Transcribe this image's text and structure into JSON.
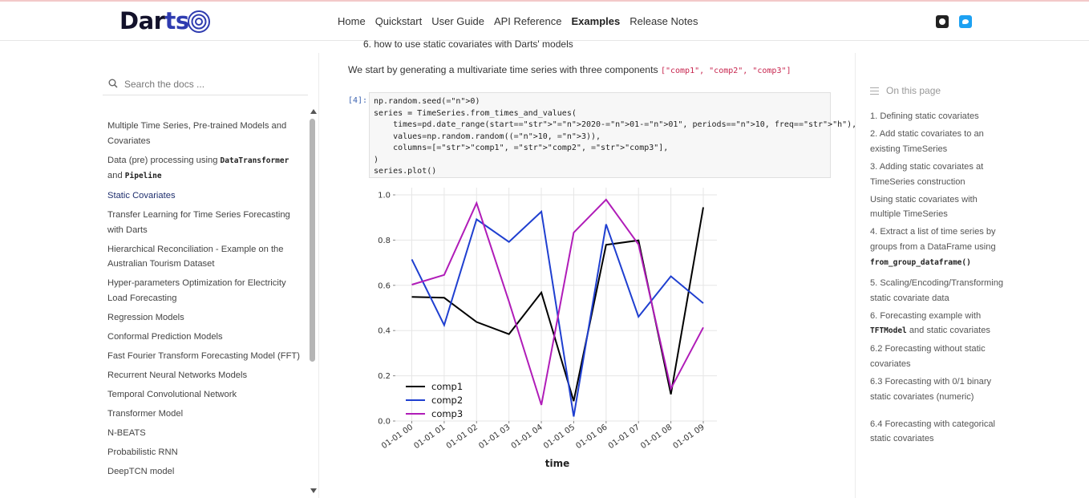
{
  "header": {
    "logo_left": "Dar",
    "logo_right": "ts",
    "nav": [
      "Home",
      "Quickstart",
      "User Guide",
      "API Reference",
      "Examples",
      "Release Notes"
    ],
    "active_nav": "Examples",
    "social": [
      "github-icon",
      "twitter-icon"
    ]
  },
  "sidebar": {
    "search_placeholder": "Search the docs ...",
    "items": [
      {
        "label": "Multiple Time Series, Pre-trained Models and Covariates"
      },
      {
        "pre": "Data (pre) processing using ",
        "code1": "DataTransformer",
        "mid": " and ",
        "code2": "Pipeline"
      },
      {
        "label": "Static Covariates",
        "active": true
      },
      {
        "label": "Transfer Learning for Time Series Forecasting with Darts"
      },
      {
        "label": "Hierarchical Reconciliation - Example on the Australian Tourism Dataset"
      },
      {
        "label": "Hyper-parameters Optimization for Electricity Load Forecasting"
      },
      {
        "label": "Regression Models"
      },
      {
        "label": "Conformal Prediction Models"
      },
      {
        "label": "Fast Fourier Transform Forecasting Model (FFT)"
      },
      {
        "label": "Recurrent Neural Networks Models"
      },
      {
        "label": "Temporal Convolutional Network"
      },
      {
        "label": "Transformer Model"
      },
      {
        "label": "N-BEATS"
      },
      {
        "label": "Probabilistic RNN"
      },
      {
        "label": "DeepTCN model"
      }
    ]
  },
  "main": {
    "bullet": "6. how to use static covariates with Darts' models",
    "intro_text": "We start by generating a multivariate time series with three components ",
    "intro_code": "[\"comp1\", \"comp2\", \"comp3\"]",
    "prompt": "[4]:",
    "code_lines": [
      "np.random.seed(0)",
      "series = TimeSeries.from_times_and_values(",
      "    times=pd.date_range(start=\"2020-01-01\", periods=10, freq=\"h\"),",
      "    values=np.random.random((10, 3)),",
      "    columns=[\"comp1\", \"comp2\", \"comp3\"],",
      ")",
      "series.plot()"
    ]
  },
  "chart_data": {
    "type": "line",
    "x": [
      "01-01 00",
      "01-01 01",
      "01-01 02",
      "01-01 03",
      "01-01 04",
      "01-01 05",
      "01-01 06",
      "01-01 07",
      "01-01 08",
      "01-01 09"
    ],
    "series": [
      {
        "name": "comp1",
        "color": "#000000",
        "values": [
          0.549,
          0.545,
          0.438,
          0.384,
          0.568,
          0.088,
          0.779,
          0.799,
          0.118,
          0.945
        ]
      },
      {
        "name": "comp2",
        "color": "#1f3fd0",
        "values": [
          0.715,
          0.424,
          0.892,
          0.792,
          0.926,
          0.02,
          0.87,
          0.461,
          0.64,
          0.521
        ]
      },
      {
        "name": "comp3",
        "color": "#b01cb8",
        "values": [
          0.603,
          0.646,
          0.964,
          0.528,
          0.071,
          0.833,
          0.979,
          0.781,
          0.143,
          0.414
        ]
      }
    ],
    "y_ticks": [
      "0.0",
      "0.2",
      "0.4",
      "0.6",
      "0.8",
      "1.0"
    ],
    "ylim": [
      0,
      1.0
    ],
    "xlabel": "time",
    "legend": "lower-left",
    "grid": true
  },
  "toc": {
    "title": "On this page",
    "items": [
      {
        "label": "1. Defining static covariates"
      },
      {
        "label": "2. Add static covariates to an existing TimeSeries"
      },
      {
        "label": "3. Adding static covariates at TimeSeries construction"
      },
      {
        "label": "Using static covariates with multiple TimeSeries"
      },
      {
        "label": "4. Extract a list of time series by groups from a DataFrame using",
        "code": "from_group_dataframe()"
      },
      {
        "label": "5. Scaling/Encoding/Transforming static covariate data"
      },
      {
        "pre": "6. Forecasting example with ",
        "code": "TFTModel",
        "post": " and static covariates"
      },
      {
        "label": "6.2 Forecasting without static covariates"
      },
      {
        "label": "6.3 Forecasting with 0/1 binary static covariates (numeric)"
      },
      {
        "label": "6.4 Forecasting with categorical static covariates"
      }
    ]
  }
}
